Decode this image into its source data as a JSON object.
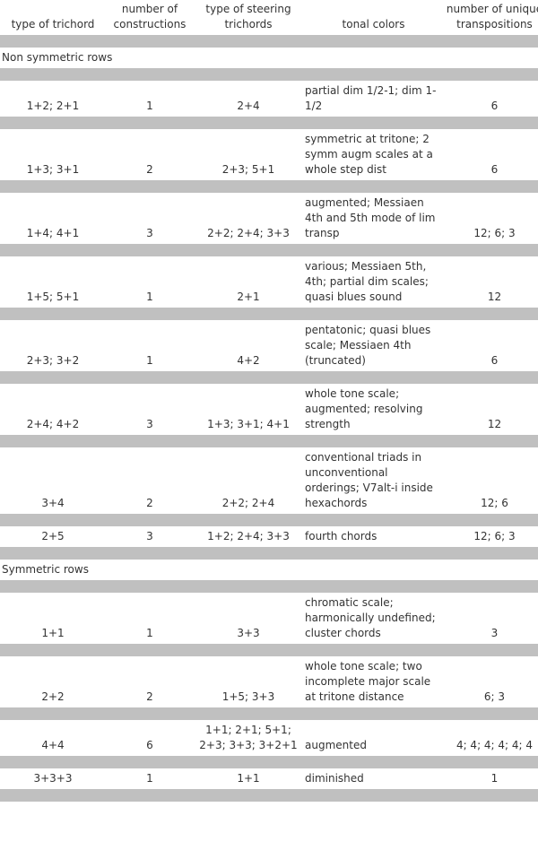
{
  "header": {
    "col1": "type of trichord",
    "col2": "number of constructions",
    "col3": "type of steering trichords",
    "col4": "tonal colors",
    "col5": "number of unique transpositions"
  },
  "sections": [
    {
      "label": "Non symmetric rows",
      "rows": [
        {
          "trichord": "1+2; 2+1",
          "constructions": "1",
          "steering": "2+4",
          "tonal": "partial dim 1/2-1; dim 1-1/2",
          "transpositions": "6"
        },
        {
          "trichord": "1+3; 3+1",
          "constructions": "2",
          "steering": "2+3; 5+1",
          "tonal": "symmetric at tritone; 2 symm augm scales at a whole step dist",
          "transpositions": "6"
        },
        {
          "trichord": "1+4; 4+1",
          "constructions": "3",
          "steering": "2+2; 2+4; 3+3",
          "tonal": "augmented; Messiaen 4th and 5th mode of lim transp",
          "transpositions": "12; 6; 3"
        },
        {
          "trichord": "1+5; 5+1",
          "constructions": "1",
          "steering": "2+1",
          "tonal": "various; Messiaen 5th, 4th; partial dim scales; quasi blues sound",
          "transpositions": "12"
        },
        {
          "trichord": "2+3; 3+2",
          "constructions": "1",
          "steering": "4+2",
          "tonal": "pentatonic; quasi blues scale; Messiaen 4th (truncated)",
          "transpositions": "6"
        },
        {
          "trichord": "2+4; 4+2",
          "constructions": "3",
          "steering": "1+3; 3+1; 4+1",
          "tonal": "whole tone scale; augmented; resolving strength",
          "transpositions": "12"
        },
        {
          "trichord": "3+4",
          "constructions": "2",
          "steering": "2+2; 2+4",
          "tonal": "conventional triads in unconventional orderings; V7alt-i inside  hexachords",
          "transpositions": "12; 6"
        },
        {
          "trichord": "2+5",
          "constructions": "3",
          "steering": "1+2; 2+4; 3+3",
          "tonal": "fourth chords",
          "transpositions": "12; 6; 3"
        }
      ]
    },
    {
      "label": "Symmetric rows",
      "rows": [
        {
          "trichord": "1+1",
          "constructions": "1",
          "steering": "3+3",
          "tonal": "chromatic scale; harmonically undefined; cluster chords",
          "transpositions": "3"
        },
        {
          "trichord": "2+2",
          "constructions": "2",
          "steering": "1+5; 3+3",
          "tonal": "whole tone scale; two incomplete major scale at tritone distance",
          "transpositions": "6; 3"
        },
        {
          "trichord": "4+4",
          "constructions": "6",
          "steering": "1+1; 2+1; 5+1; 2+3; 3+3; 3+2+1",
          "tonal": "augmented",
          "transpositions": "4; 4; 4; 4; 4; 4"
        },
        {
          "trichord": "3+3+3",
          "constructions": "1",
          "steering": "1+1",
          "tonal": "diminished",
          "transpositions": "1"
        }
      ]
    }
  ],
  "colors": {
    "separator": "#c0c0c0",
    "text": "#333333"
  }
}
